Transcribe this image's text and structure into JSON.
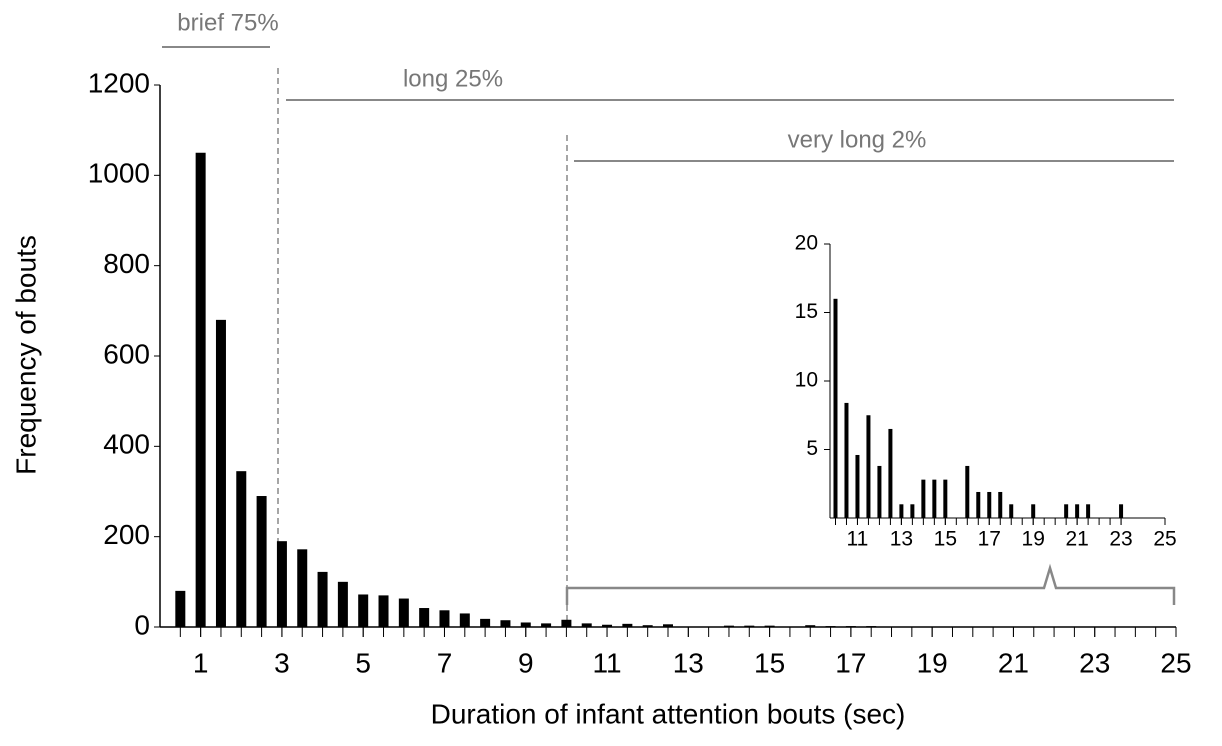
{
  "chart_data": [
    {
      "type": "bar",
      "xlabel": "Duration of infant attention bouts (sec)",
      "ylabel": "Frequency of bouts",
      "x": [
        0.5,
        1,
        1.5,
        2,
        2.5,
        3,
        3.5,
        4,
        4.5,
        5,
        5.5,
        6,
        6.5,
        7,
        7.5,
        8,
        8.5,
        9,
        9.5,
        10,
        10.5,
        11,
        11.5,
        12,
        12.5,
        13,
        13.5,
        14,
        14.5,
        15,
        15.5,
        16,
        16.5,
        17,
        17.5,
        18,
        18.5,
        19,
        19.5,
        20,
        20.5,
        21,
        21.5,
        22,
        22.5,
        23,
        23.5,
        24,
        24.5,
        25
      ],
      "values": [
        80,
        1050,
        680,
        345,
        290,
        190,
        172,
        122,
        100,
        72,
        70,
        63,
        42,
        37,
        30,
        18,
        15,
        10,
        8,
        16,
        8,
        5,
        7,
        4,
        6,
        1,
        1,
        3,
        3,
        3,
        0,
        4,
        2,
        2,
        2,
        1,
        0,
        1,
        0,
        0,
        1,
        1,
        1,
        0,
        0,
        1,
        0,
        0,
        0,
        0
      ],
      "color": "#000000",
      "xlim": [
        0,
        25
      ],
      "xticks": [
        1,
        3,
        5,
        7,
        9,
        11,
        13,
        15,
        17,
        19,
        21,
        23,
        25
      ],
      "ylim": [
        0,
        1200
      ],
      "yticks": [
        0,
        200,
        400,
        600,
        800,
        1000,
        1200
      ],
      "annotations": [
        "brief 75%",
        "long 25%",
        "very long 2%"
      ]
    },
    {
      "type": "bar",
      "x": [
        10,
        10.5,
        11,
        11.5,
        12,
        12.5,
        13,
        13.5,
        14,
        14.5,
        15,
        15.5,
        16,
        16.5,
        17,
        17.5,
        18,
        18.5,
        19,
        19.5,
        20,
        20.5,
        21,
        21.5,
        22,
        22.5,
        23
      ],
      "values": [
        16,
        8.4,
        4.6,
        7.5,
        3.8,
        6.5,
        1,
        1,
        2.8,
        2.8,
        2.8,
        0,
        3.8,
        1.9,
        1.9,
        1.9,
        1,
        0,
        1,
        0,
        0,
        1,
        1,
        1,
        0,
        0,
        1
      ],
      "color": "#000000",
      "xlim": [
        9.75,
        25
      ],
      "xticks": [
        11,
        13,
        15,
        17,
        19,
        21,
        23,
        25
      ],
      "ylim": [
        0,
        20
      ],
      "yticks": [
        5,
        10,
        15,
        20
      ]
    }
  ]
}
